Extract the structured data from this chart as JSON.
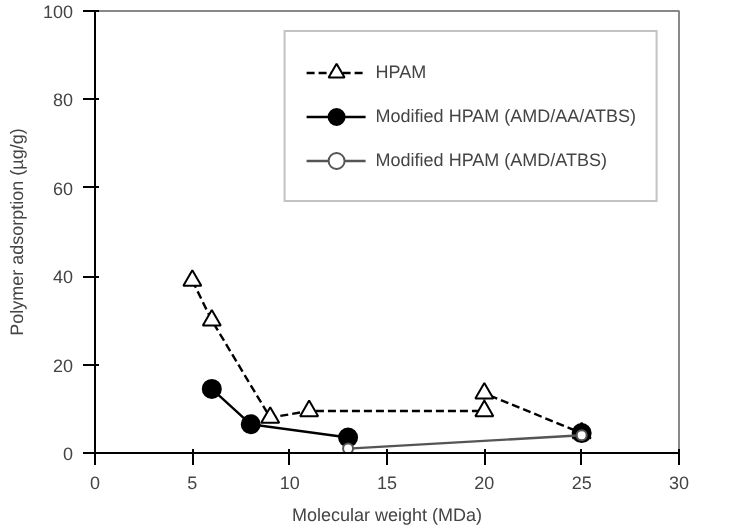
{
  "chart_data": {
    "type": "line",
    "xlabel": "Molecular weight (MDa)",
    "ylabel": "Polymer adsorption (µg/g)",
    "xlim": [
      0,
      30
    ],
    "xticks": [
      0,
      5,
      10,
      15,
      20,
      25,
      30
    ],
    "ylim": [
      0,
      100
    ],
    "yticks": [
      0,
      20,
      40,
      60,
      80,
      100
    ],
    "grid": false,
    "legend": "top right",
    "series": [
      {
        "name": "HPAM",
        "color": "#000000",
        "x": [
          5,
          6,
          9,
          11,
          20,
          20,
          25
        ],
        "values": [
          39,
          30,
          8,
          9.5,
          9.5,
          13.5,
          4.5
        ],
        "marker": "triangle",
        "line_style": "dashed"
      },
      {
        "name": "Modified HPAM (AMD/AA/ATBS)",
        "color": "#000000",
        "x": [
          6,
          8,
          13
        ],
        "values": [
          14.5,
          6.5,
          3.5
        ],
        "marker": "circle",
        "line_style": "solid"
      },
      {
        "color": "#000000",
        "x": [
          25
        ],
        "values": [
          4.5
        ],
        "marker": "circle",
        "line_style": "solid"
      },
      {
        "name": "Modified HPAM (AMD/ATBS)",
        "color": "#555555",
        "x": [
          13,
          25
        ],
        "values": [
          1,
          4
        ],
        "marker": "circle",
        "line_style": "solid"
      }
    ]
  }
}
